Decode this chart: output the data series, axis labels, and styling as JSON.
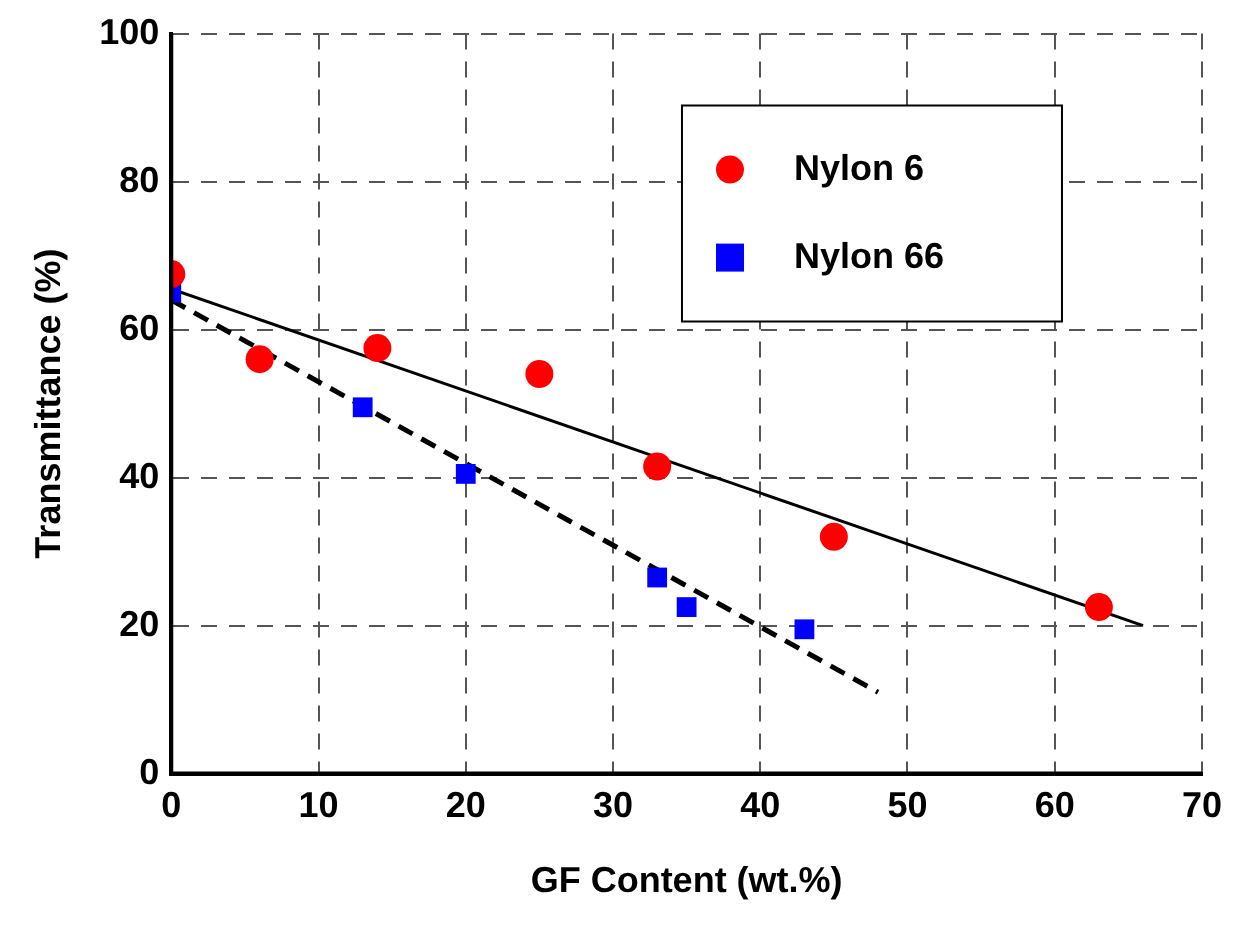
{
  "chart_data": {
    "type": "scatter",
    "xlabel": "GF Content (wt.%)",
    "ylabel": "Transmittance (%)",
    "xlim": [
      0,
      70
    ],
    "xticks": [
      0,
      10,
      20,
      30,
      40,
      50,
      60,
      70
    ],
    "ylim": [
      0,
      100
    ],
    "yticks": [
      0,
      20,
      40,
      60,
      80,
      100
    ],
    "grid": true,
    "legend": "top right",
    "series": [
      {
        "name": "Nylon 6",
        "marker": "circle",
        "color": "#ff0000",
        "x": [
          0,
          6,
          14,
          25,
          33,
          45,
          63
        ],
        "values": [
          67.5,
          56,
          57.5,
          54,
          41.5,
          32,
          22.5
        ]
      },
      {
        "name": "Nylon 66",
        "marker": "square",
        "color": "#0000ff",
        "x": [
          0,
          13,
          20,
          33,
          35,
          43
        ],
        "values": [
          65,
          49.5,
          40.5,
          26.5,
          22.5,
          19.5
        ]
      },
      {
        "type": "line",
        "marker": "none",
        "line_style": "solid",
        "color": "#000000",
        "x": [
          0,
          66
        ],
        "values": [
          65.5,
          20
        ]
      },
      {
        "type": "line",
        "marker": "none",
        "line_style": "dashed",
        "color": "#000000",
        "x": [
          0,
          48
        ],
        "values": [
          64,
          11
        ]
      }
    ]
  }
}
